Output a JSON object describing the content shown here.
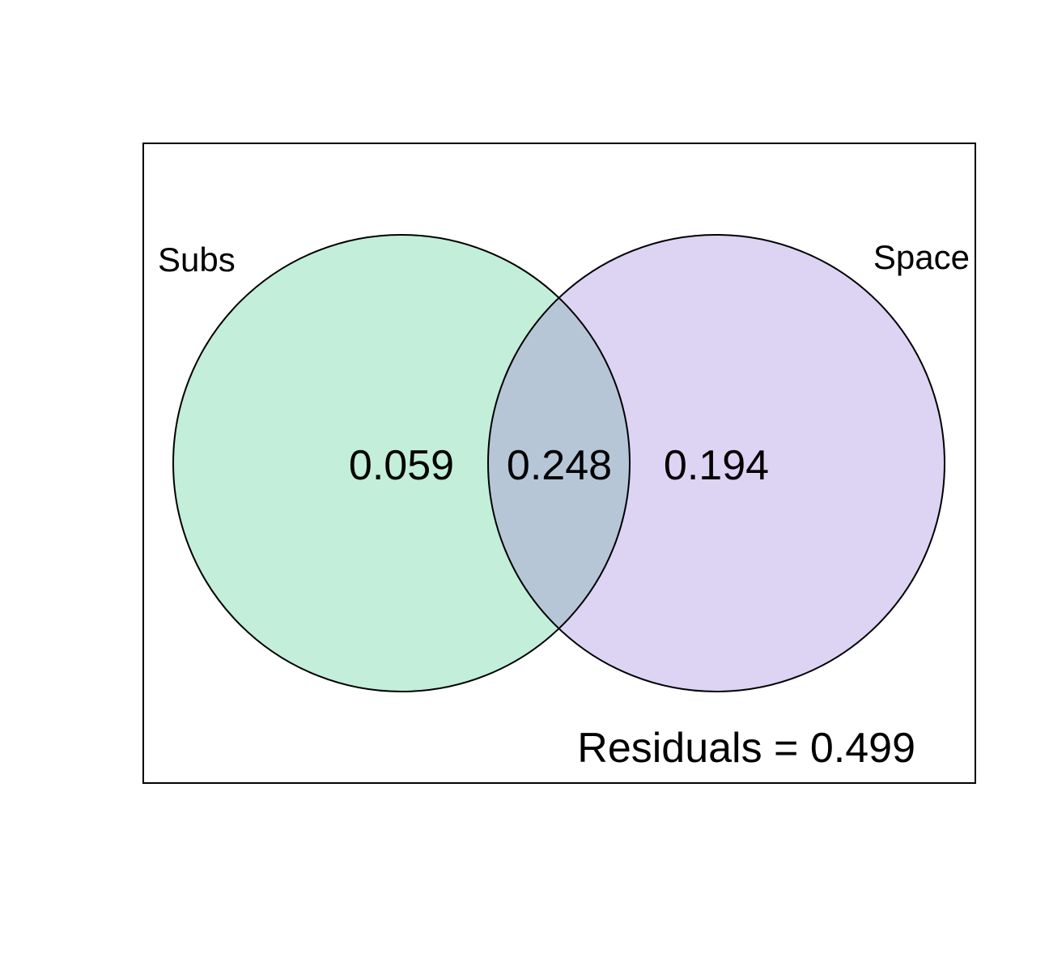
{
  "diagram": {
    "type": "venn",
    "sets": [
      {
        "name": "Subs",
        "color": "#c3eed9"
      },
      {
        "name": "Space",
        "color": "#ddd3f3"
      }
    ],
    "intersection_color": "#b6c6d6",
    "regions": {
      "subs_only": "0.059",
      "shared": "0.248",
      "space_only": "0.194"
    },
    "residuals_text": "Residuals = 0.499"
  }
}
